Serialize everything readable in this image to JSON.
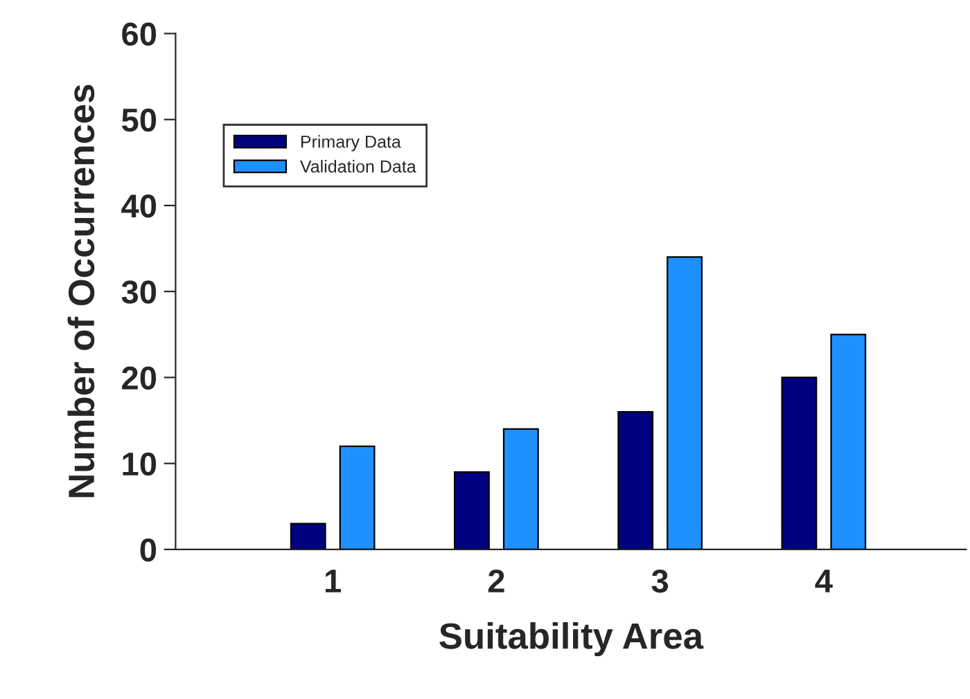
{
  "chart_data": {
    "type": "bar",
    "xlabel": "Suitability Area",
    "ylabel": "Number of Occurrences",
    "categories": [
      "1",
      "2",
      "3",
      "4"
    ],
    "series": [
      {
        "name": "Primary Data",
        "color": "#000080",
        "values": [
          3,
          9,
          16,
          20
        ]
      },
      {
        "name": "Validation Data",
        "color": "#1e90ff",
        "values": [
          12,
          14,
          34,
          25
        ]
      }
    ],
    "ylim": [
      0,
      60
    ],
    "yticks": [
      0,
      10,
      20,
      30,
      40,
      50,
      60
    ],
    "grid": false,
    "legend": "top left"
  }
}
